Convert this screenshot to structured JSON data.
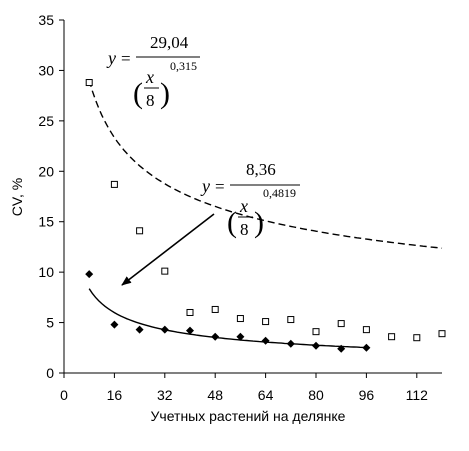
{
  "chart_data": {
    "type": "scatter",
    "title": "",
    "xlabel": "Учетных растений на делянке",
    "ylabel": "CV, %",
    "xlim": [
      0,
      120
    ],
    "ylim": [
      0,
      35
    ],
    "x_ticks": [
      "0",
      "16",
      "32",
      "48",
      "64",
      "80",
      "96",
      "112"
    ],
    "y_ticks": [
      "0",
      "5",
      "10",
      "15",
      "20",
      "25",
      "30",
      "35"
    ],
    "grid": false,
    "legend": "none",
    "series": [
      {
        "marker": "open-square",
        "line": "dashed",
        "color": "#000000",
        "points": [
          [
            8,
            28.8
          ],
          [
            16,
            18.7
          ],
          [
            24,
            14.1
          ],
          [
            32,
            10.1
          ],
          [
            40,
            6.0
          ],
          [
            48,
            6.3
          ],
          [
            56,
            5.4
          ],
          [
            64,
            5.1
          ],
          [
            72,
            5.3
          ],
          [
            80,
            4.1
          ],
          [
            88,
            4.9
          ],
          [
            96,
            4.3
          ],
          [
            104,
            3.6
          ],
          [
            112,
            3.5
          ],
          [
            120,
            3.9
          ]
        ],
        "fit": {
          "coef": 29.04,
          "exp": 0.315,
          "x_range": [
            8,
            120
          ]
        }
      },
      {
        "marker": "filled-diamond",
        "line": "solid",
        "color": "#000000",
        "points": [
          [
            8,
            9.8
          ],
          [
            16,
            4.8
          ],
          [
            24,
            4.3
          ],
          [
            32,
            4.3
          ],
          [
            40,
            4.2
          ],
          [
            48,
            3.6
          ],
          [
            56,
            3.6
          ],
          [
            64,
            3.2
          ],
          [
            72,
            2.9
          ],
          [
            80,
            2.7
          ],
          [
            88,
            2.4
          ],
          [
            96,
            2.5
          ]
        ],
        "fit": {
          "coef": 8.36,
          "exp": 0.4819,
          "x_range": [
            8,
            96
          ]
        }
      }
    ],
    "annotations": [
      {
        "y": "y",
        "eq": "=",
        "num": "29,04",
        "x": "x",
        "den": "8",
        "exp": "0,315"
      },
      {
        "y": "y",
        "eq": "=",
        "num": "8,36",
        "x": "x",
        "den": "8",
        "exp": "0,4819"
      }
    ]
  }
}
